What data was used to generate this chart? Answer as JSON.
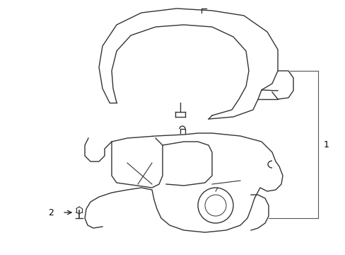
{
  "background_color": "#ffffff",
  "line_color": "#333333",
  "line_width": 1.0,
  "label1": "1",
  "label2": "2",
  "figsize": [
    4.89,
    3.6
  ],
  "dpi": 100,
  "callout_line_color": "#555555",
  "text_color": "#000000",
  "text_fontsize": 9
}
